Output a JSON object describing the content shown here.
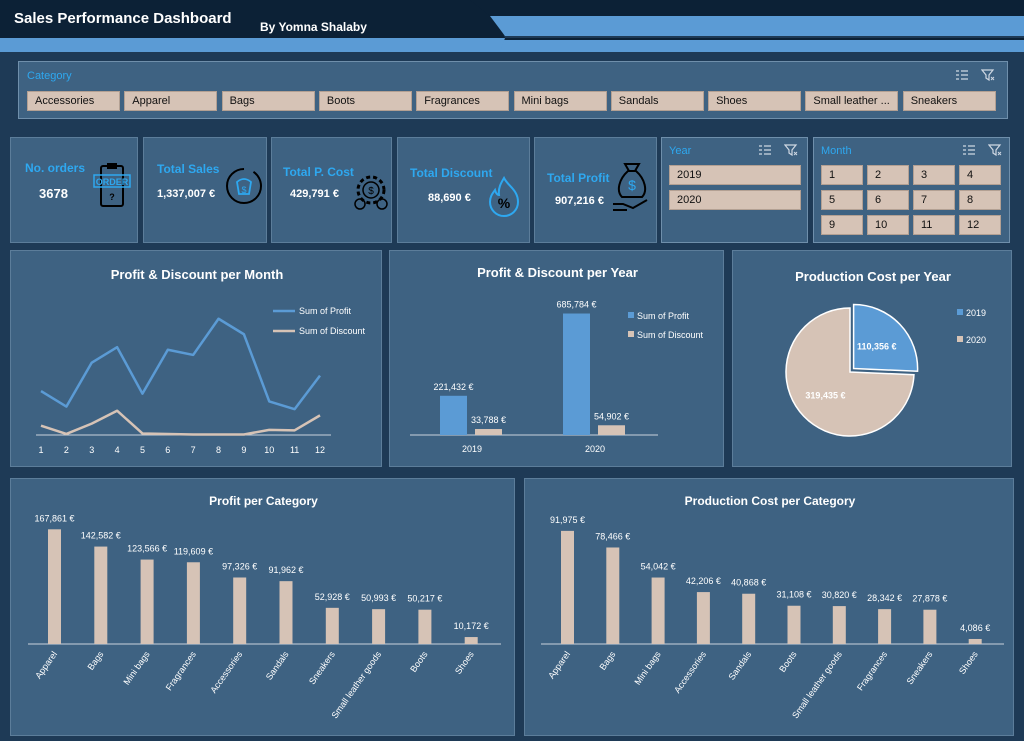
{
  "header": {
    "title": "Sales Performance Dashboard",
    "author": "By Yomna Shalaby"
  },
  "category_slicer": {
    "label": "Category",
    "items": [
      "Accessories",
      "Apparel",
      "Bags",
      "Boots",
      "Fragrances",
      "Mini bags",
      "Sandals",
      "Shoes",
      "Small leather ...",
      "Sneakers"
    ]
  },
  "kpis": {
    "orders": {
      "label": "No. orders",
      "value": "3678",
      "icon": "order-clipboard-icon"
    },
    "sales": {
      "label": "Total Sales",
      "value": "1,337,007 €",
      "icon": "money-bag-icon"
    },
    "cost": {
      "label": "Total P. Cost",
      "value": "429,791 €",
      "icon": "gear-dollar-icon"
    },
    "discount": {
      "label": "Total Discount",
      "value": "88,690 €",
      "icon": "fire-percent-icon"
    },
    "profit": {
      "label": "Total Profit",
      "value": "907,216 €",
      "icon": "hand-money-bag-icon"
    }
  },
  "year_slicer": {
    "label": "Year",
    "items": [
      "2019",
      "2020"
    ]
  },
  "month_slicer": {
    "label": "Month",
    "items": [
      "1",
      "2",
      "3",
      "4",
      "5",
      "6",
      "7",
      "8",
      "9",
      "10",
      "11",
      "12"
    ]
  },
  "colors": {
    "profit": "#5b9bd5",
    "discount": "#d6c3b6",
    "accent": "#2ea8f0",
    "panel": "#3e6282"
  },
  "chart_data": [
    {
      "id": "profit-discount-month",
      "type": "line",
      "title": "Profit & Discount per Month",
      "x": [
        1,
        2,
        3,
        4,
        5,
        6,
        7,
        8,
        9,
        10,
        11,
        12
      ],
      "series": [
        {
          "name": "Sum of Profit",
          "values": [
            85000,
            55000,
            140000,
            170000,
            80000,
            165000,
            155000,
            225000,
            195000,
            65000,
            50000,
            115000
          ]
        },
        {
          "name": "Sum of Discount",
          "values": [
            18000,
            2000,
            22000,
            47000,
            3000,
            2000,
            1000,
            1000,
            1000,
            10000,
            9000,
            38000
          ]
        }
      ],
      "ylim": [
        0,
        240000
      ]
    },
    {
      "id": "profit-discount-year",
      "type": "bar",
      "title": "Profit & Discount per Year",
      "categories": [
        "2019",
        "2020"
      ],
      "series": [
        {
          "name": "Sum of Profit",
          "values": [
            221432,
            685784
          ],
          "labels": [
            "221,432 €",
            "685,784 €"
          ]
        },
        {
          "name": "Sum of Discount",
          "values": [
            33788,
            54902
          ],
          "labels": [
            "33,788 €",
            "54,902 €"
          ]
        }
      ],
      "ylim": [
        0,
        700000
      ]
    },
    {
      "id": "production-cost-year",
      "type": "pie",
      "title": "Production Cost per Year",
      "categories": [
        "2019",
        "2020"
      ],
      "values": [
        110356,
        319435
      ],
      "labels": [
        "110,356 €",
        "319,435 €"
      ]
    },
    {
      "id": "profit-category",
      "type": "bar",
      "title": "Profit per Category",
      "categories": [
        "Apparel",
        "Bags",
        "Mini bags",
        "Fragrances",
        "Accessories",
        "Sandals",
        "Sneakers",
        "Small leather goods",
        "Boots",
        "Shoes"
      ],
      "values": [
        167861,
        142582,
        123566,
        119609,
        97326,
        91962,
        52928,
        50993,
        50217,
        10172
      ],
      "labels": [
        "167,861 €",
        "142,582 €",
        "123,566 €",
        "119,609 €",
        "97,326 €",
        "91,962 €",
        "52,928 €",
        "50,993 €",
        "50,217 €",
        "10,172 €"
      ],
      "ylim": [
        0,
        180000
      ]
    },
    {
      "id": "production-cost-category",
      "type": "bar",
      "title": "Production Cost per Category",
      "categories": [
        "Apparel",
        "Bags",
        "Mini bags",
        "Accessories",
        "Sandals",
        "Boots",
        "Small leather goods",
        "Fragrances",
        "Sneakers",
        "Shoes"
      ],
      "values": [
        91975,
        78466,
        54042,
        42206,
        40868,
        31108,
        30820,
        28342,
        27878,
        4086
      ],
      "labels": [
        "91,975 €",
        "78,466 €",
        "54,042 €",
        "42,206 €",
        "40,868 €",
        "31,108 €",
        "30,820 €",
        "28,342 €",
        "27,878 €",
        "4,086 €"
      ],
      "ylim": [
        0,
        100000
      ]
    }
  ]
}
